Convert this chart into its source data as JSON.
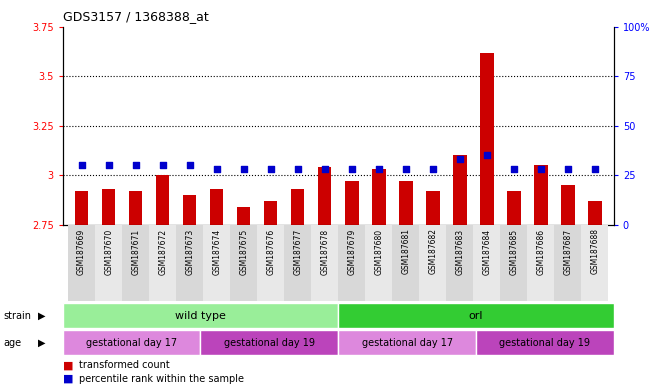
{
  "title": "GDS3157 / 1368388_at",
  "samples": [
    "GSM187669",
    "GSM187670",
    "GSM187671",
    "GSM187672",
    "GSM187673",
    "GSM187674",
    "GSM187675",
    "GSM187676",
    "GSM187677",
    "GSM187678",
    "GSM187679",
    "GSM187680",
    "GSM187681",
    "GSM187682",
    "GSM187683",
    "GSM187684",
    "GSM187685",
    "GSM187686",
    "GSM187687",
    "GSM187688"
  ],
  "bar_values": [
    2.92,
    2.93,
    2.92,
    3.0,
    2.9,
    2.93,
    2.84,
    2.87,
    2.93,
    3.04,
    2.97,
    3.03,
    2.97,
    2.92,
    3.1,
    3.62,
    2.92,
    3.05,
    2.95,
    2.87
  ],
  "percentile_values": [
    30,
    30,
    30,
    30,
    30,
    28,
    28,
    28,
    28,
    28,
    28,
    28,
    28,
    28,
    33,
    35,
    28,
    28,
    28,
    28
  ],
  "ylim_left": [
    2.75,
    3.75
  ],
  "ylim_right": [
    0,
    100
  ],
  "yticks_left": [
    2.75,
    3.0,
    3.25,
    3.5,
    3.75
  ],
  "yticks_right": [
    0,
    25,
    50,
    75,
    100
  ],
  "ytick_labels_left": [
    "2.75",
    "3",
    "3.25",
    "3.5",
    "3.75"
  ],
  "ytick_labels_right": [
    "0",
    "25",
    "50",
    "75",
    "100%"
  ],
  "hlines": [
    3.0,
    3.25,
    3.5
  ],
  "bar_color": "#cc0000",
  "dot_color": "#0000cc",
  "plot_bg_color": "#ffffff",
  "fig_bg_color": "#ffffff",
  "strain_groups": [
    {
      "label": "wild type",
      "start": 0,
      "end": 10,
      "color": "#99ee99"
    },
    {
      "label": "orl",
      "start": 10,
      "end": 20,
      "color": "#33cc33"
    }
  ],
  "age_groups": [
    {
      "label": "gestational day 17",
      "start": 0,
      "end": 5,
      "color": "#dd88dd"
    },
    {
      "label": "gestational day 19",
      "start": 5,
      "end": 10,
      "color": "#bb44bb"
    },
    {
      "label": "gestational day 17",
      "start": 10,
      "end": 15,
      "color": "#dd88dd"
    },
    {
      "label": "gestational day 19",
      "start": 15,
      "end": 20,
      "color": "#bb44bb"
    }
  ]
}
